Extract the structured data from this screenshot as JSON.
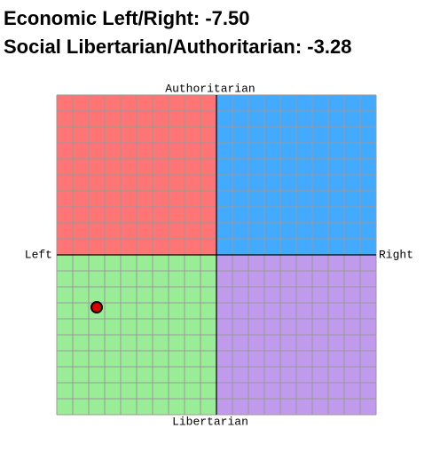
{
  "chart_data": {
    "type": "scatter",
    "title": "Economic Left/Right: -7.50",
    "subtitle": "Social Libertarian/Authoritarian: -3.28",
    "axis_labels": {
      "top": "Authoritarian",
      "bottom": "Libertarian",
      "left": "Left",
      "right": "Right"
    },
    "x": [
      -7.5
    ],
    "values": [
      -3.28
    ],
    "color": "#e00000",
    "xlim": [
      -10,
      10
    ],
    "ylim": [
      -10,
      10
    ],
    "grid": true,
    "grid_step": 1,
    "quadrant_colors": {
      "top_left": "#ff7575",
      "top_right": "#42aaff",
      "bottom_left": "#9aed97",
      "bottom_right": "#c09aec"
    }
  }
}
